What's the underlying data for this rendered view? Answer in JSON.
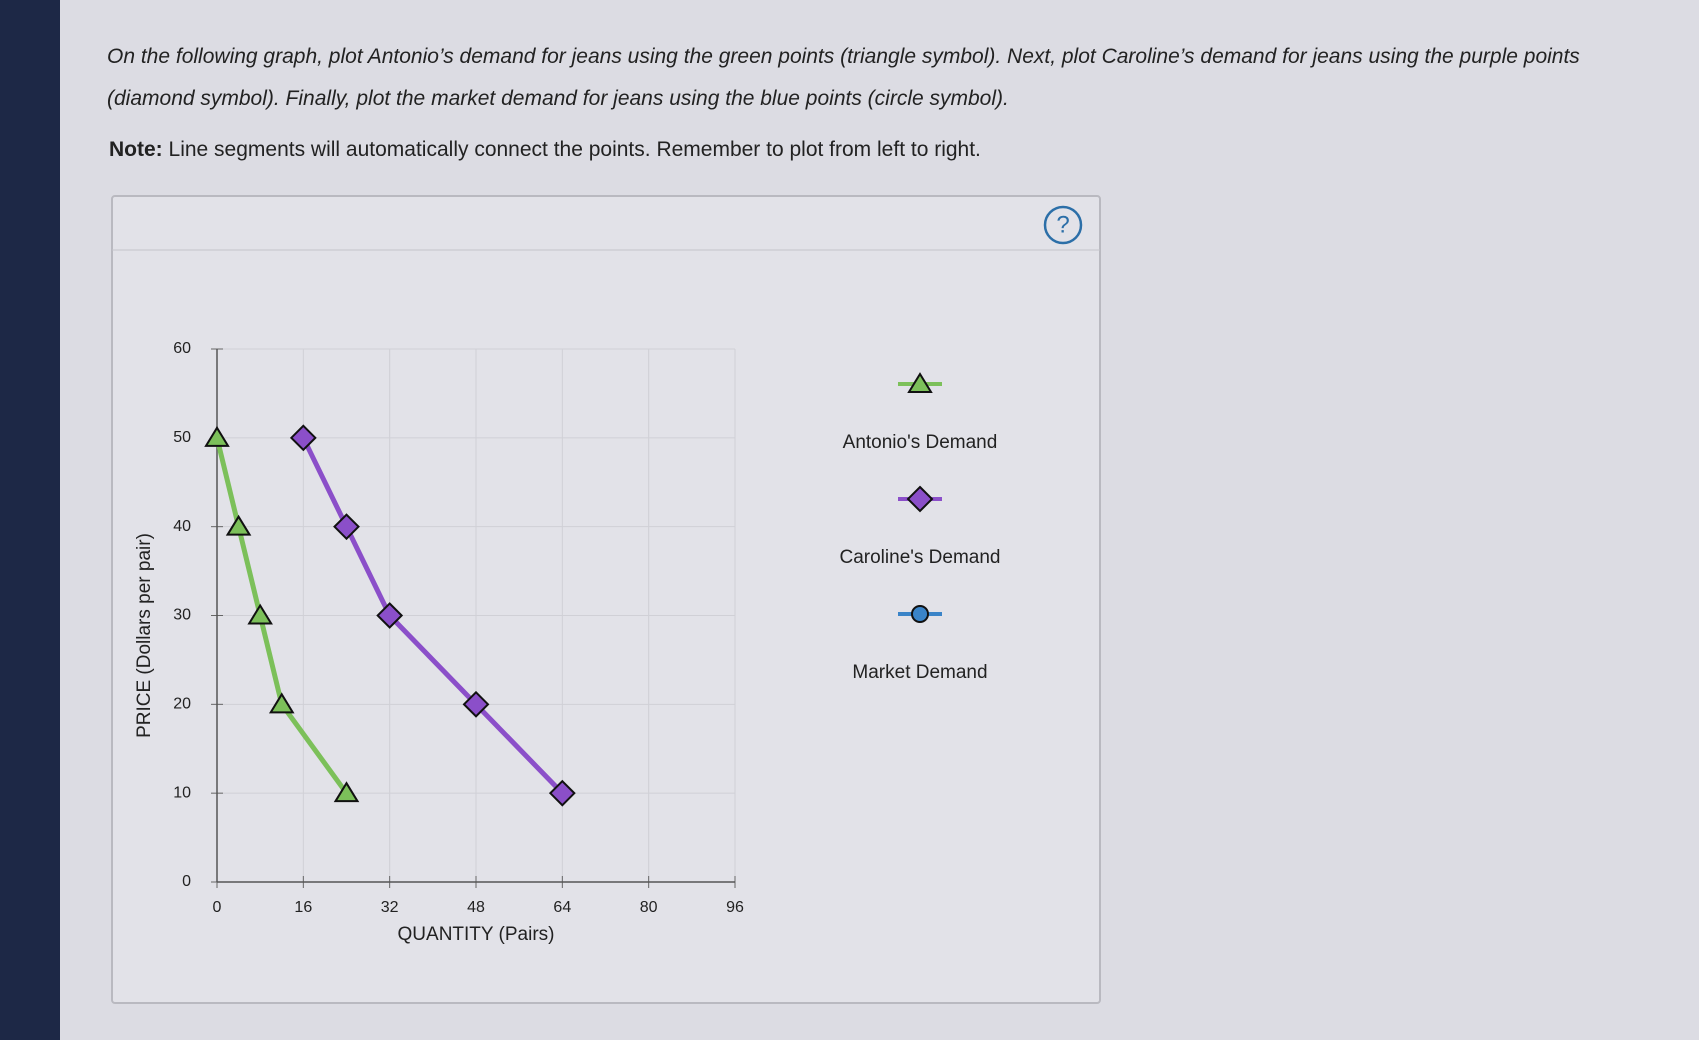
{
  "instructions": {
    "text": "On the following graph, plot Antonio’s demand for jeans using the green points (triangle symbol). Next, plot Caroline’s demand for jeans using the purple points (diamond symbol). Finally, plot the market demand for jeans using the blue points (circle symbol).",
    "note_label": "Note:",
    "note_text": "Line segments will automatically connect the points. Remember to plot from left to right."
  },
  "help_icon": "?",
  "chart_data": {
    "type": "line",
    "xlabel": "QUANTITY (Pairs)",
    "ylabel": "PRICE (Dollars per pair)",
    "xlim": [
      0,
      96
    ],
    "xticks": [
      0,
      16,
      32,
      48,
      64,
      80,
      96
    ],
    "ylim": [
      0,
      60
    ],
    "yticks": [
      0,
      10,
      20,
      30,
      40,
      50,
      60
    ],
    "grid": true,
    "series": [
      {
        "name": "Antonio's Demand",
        "color": "#7cc05a",
        "marker": "triangle",
        "x": [
          0,
          4,
          8,
          12,
          24
        ],
        "values": [
          50,
          40,
          30,
          20,
          10
        ]
      },
      {
        "name": "Caroline's Demand",
        "color": "#8b4fc9",
        "marker": "diamond",
        "x": [
          16,
          24,
          32,
          48,
          64
        ],
        "values": [
          50,
          40,
          30,
          20,
          10
        ]
      },
      {
        "name": "Market Demand",
        "color": "#3a84c8",
        "marker": "circle",
        "x": [],
        "values": []
      }
    ]
  }
}
